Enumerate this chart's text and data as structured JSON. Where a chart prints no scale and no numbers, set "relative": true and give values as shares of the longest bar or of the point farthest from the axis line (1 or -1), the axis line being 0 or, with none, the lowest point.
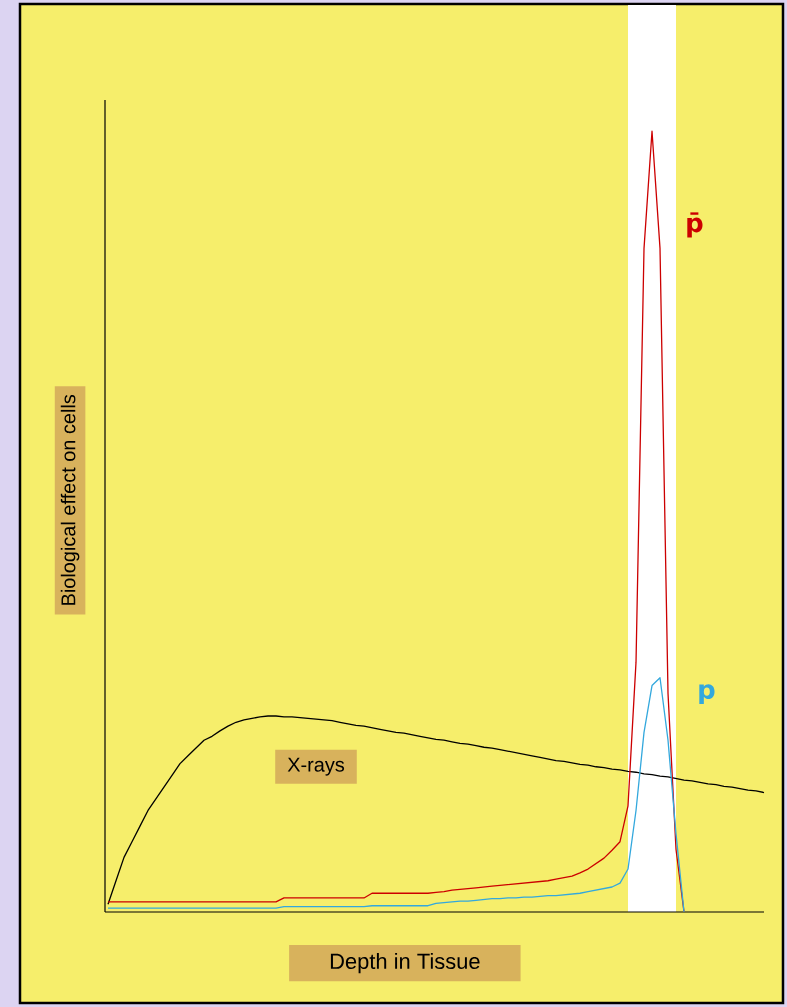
{
  "chart_data": {
    "type": "line",
    "xlabel": "Depth in Tissue",
    "ylabel": "Biological effect on cells",
    "relative": true,
    "categories": [
      null,
      null,
      null,
      null,
      null,
      null,
      null,
      null,
      null,
      null,
      null,
      null,
      null,
      null,
      null,
      null,
      null,
      null,
      null,
      null,
      null,
      null,
      null,
      null,
      null,
      null,
      null,
      null,
      null,
      null,
      null,
      null,
      null,
      null,
      null,
      null,
      null,
      null,
      null,
      null,
      null,
      null,
      null,
      null,
      null,
      null,
      null,
      null,
      null,
      null,
      null,
      null,
      null,
      null,
      null,
      null,
      null,
      null,
      null,
      null,
      null,
      null,
      null,
      null,
      null,
      null,
      null,
      null,
      null,
      null,
      null,
      null,
      null,
      null,
      null,
      null,
      null,
      null,
      null,
      null,
      null,
      null,
      null
    ],
    "series": [
      {
        "name": "X-rays",
        "color": "#000000",
        "values": [
          0.01,
          0.04,
          0.07,
          0.09,
          0.11,
          0.13,
          0.145,
          0.16,
          0.175,
          0.19,
          0.2,
          0.21,
          0.22,
          0.225,
          0.232,
          0.238,
          0.243,
          0.246,
          0.248,
          0.25,
          0.251,
          0.251,
          0.25,
          0.25,
          0.249,
          0.248,
          0.247,
          0.246,
          0.245,
          0.243,
          0.241,
          0.239,
          0.238,
          0.236,
          0.234,
          0.232,
          0.23,
          0.229,
          0.227,
          0.225,
          0.223,
          0.221,
          0.22,
          0.218,
          0.216,
          0.215,
          0.213,
          0.211,
          0.21,
          0.208,
          0.206,
          0.204,
          0.202,
          0.2,
          0.198,
          0.196,
          0.194,
          0.193,
          0.191,
          0.189,
          0.188,
          0.186,
          0.185,
          0.183,
          0.182,
          0.18,
          0.179,
          0.177,
          0.176,
          0.174,
          0.173,
          0.171,
          0.169,
          0.168,
          0.166,
          0.164,
          0.163,
          0.161,
          0.16,
          0.158,
          0.156,
          0.155,
          0.153
        ]
      },
      {
        "name": "p̄",
        "color": "#cc0000",
        "values": [
          0.013,
          0.013,
          0.013,
          0.013,
          0.013,
          0.013,
          0.013,
          0.013,
          0.013,
          0.013,
          0.013,
          0.013,
          0.013,
          0.013,
          0.013,
          0.013,
          0.013,
          0.013,
          0.013,
          0.013,
          0.013,
          0.013,
          0.018,
          0.018,
          0.018,
          0.018,
          0.018,
          0.018,
          0.018,
          0.018,
          0.018,
          0.018,
          0.018,
          0.024,
          0.024,
          0.024,
          0.024,
          0.024,
          0.024,
          0.024,
          0.024,
          0.025,
          0.026,
          0.028,
          0.029,
          0.03,
          0.031,
          0.032,
          0.033,
          0.034,
          0.035,
          0.036,
          0.037,
          0.038,
          0.039,
          0.04,
          0.042,
          0.044,
          0.046,
          0.05,
          0.055,
          0.062,
          0.069,
          0.079,
          0.09,
          0.136,
          0.32,
          0.85,
          1.0,
          0.85,
          0.28,
          0.08,
          0,
          null,
          null,
          null,
          null,
          null,
          null,
          null,
          null,
          null,
          null
        ]
      },
      {
        "name": "p",
        "color": "#33a8dd",
        "values": [
          0.005,
          0.005,
          0.005,
          0.005,
          0.005,
          0.005,
          0.005,
          0.005,
          0.005,
          0.005,
          0.005,
          0.005,
          0.005,
          0.005,
          0.005,
          0.005,
          0.005,
          0.005,
          0.005,
          0.005,
          0.005,
          0.005,
          0.007,
          0.007,
          0.007,
          0.007,
          0.007,
          0.007,
          0.007,
          0.007,
          0.007,
          0.007,
          0.007,
          0.008,
          0.008,
          0.008,
          0.008,
          0.008,
          0.008,
          0.008,
          0.008,
          0.011,
          0.012,
          0.013,
          0.014,
          0.014,
          0.015,
          0.016,
          0.017,
          0.017,
          0.018,
          0.018,
          0.019,
          0.019,
          0.02,
          0.021,
          0.021,
          0.022,
          0.023,
          0.024,
          0.026,
          0.028,
          0.03,
          0.032,
          0.037,
          0.055,
          0.13,
          0.23,
          0.29,
          0.3,
          0.22,
          0.1,
          0,
          null,
          null,
          null,
          null,
          null,
          null,
          null,
          null,
          null,
          null
        ]
      }
    ]
  }
}
